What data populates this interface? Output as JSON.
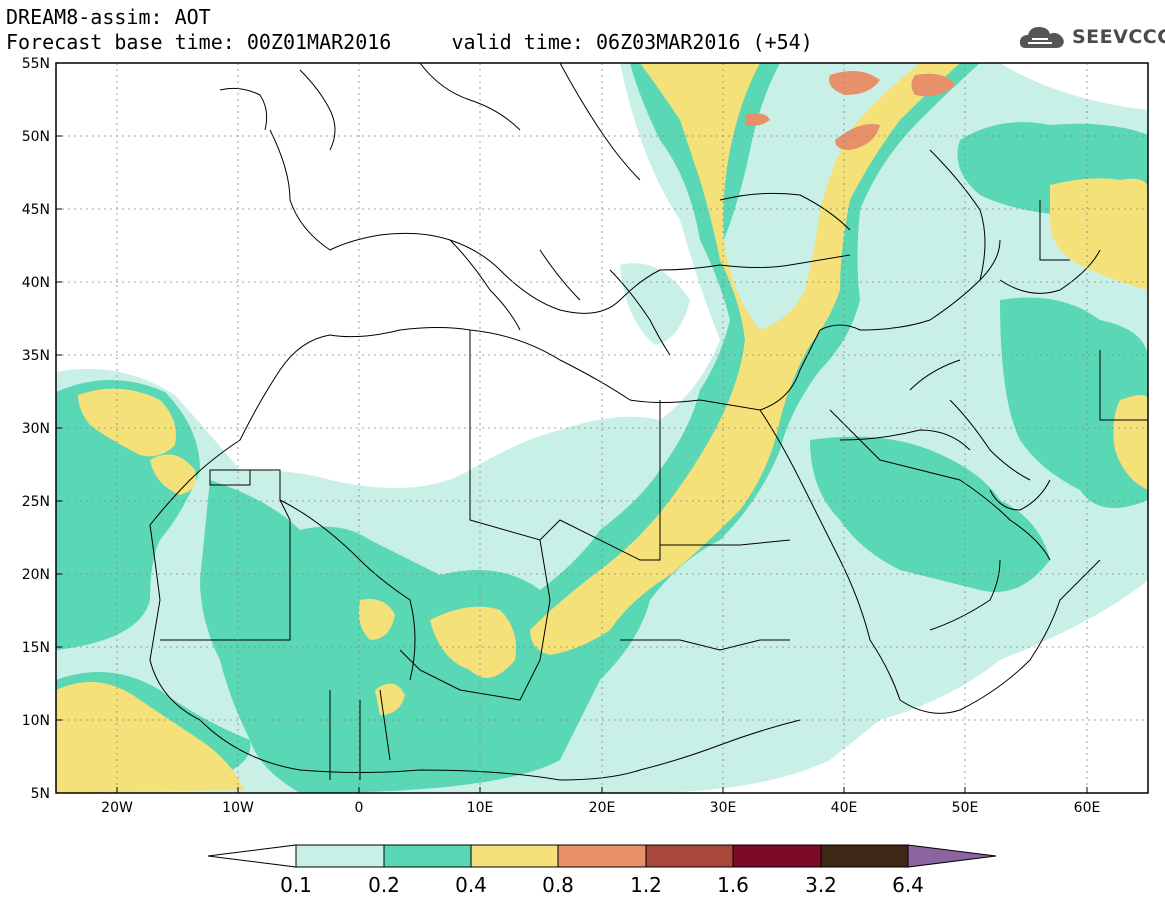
{
  "header": {
    "line1": "DREAM8-assim: AOT",
    "line2": "Forecast base time: 00Z01MAR2016     valid time: 06Z03MAR2016 (+54)"
  },
  "logo": {
    "text": "SEEVCCC",
    "icon": "cloud-logo-icon"
  },
  "map": {
    "lat_labels": [
      "55N",
      "50N",
      "45N",
      "40N",
      "35N",
      "30N",
      "25N",
      "20N",
      "15N",
      "10N",
      "5N"
    ],
    "lon_labels": [
      "20W",
      "10W",
      "0",
      "10E",
      "20E",
      "30E",
      "40E",
      "50E",
      "60E"
    ],
    "lat_range": [
      5,
      55
    ],
    "lon_range": [
      -25,
      65
    ],
    "gridlines": "dotted"
  },
  "colorbar": {
    "labels": [
      "0.1",
      "0.2",
      "0.4",
      "0.8",
      "1.2",
      "1.6",
      "3.2",
      "6.4"
    ],
    "colors": [
      "#c8f0e6",
      "#5ad7b4",
      "#f5e17a",
      "#e8906a",
      "#a8483a",
      "#7a0a28",
      "#3c2814",
      "#8c64a0"
    ],
    "under_color": "#ffffff"
  },
  "colors": {
    "level_0_1": "#c8f0e6",
    "level_0_2": "#5ad7b4",
    "level_0_4": "#f5e17a",
    "level_0_8": "#e8906a"
  }
}
